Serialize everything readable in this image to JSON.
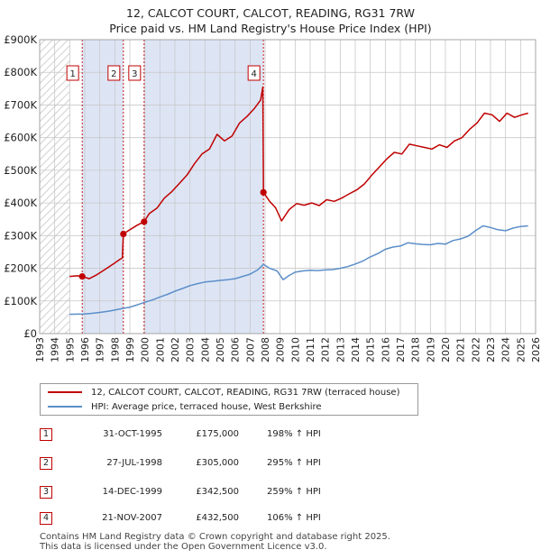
{
  "title": {
    "line1": "12, CALCOT COURT, CALCOT, READING, RG31 7RW",
    "line2": "Price paid vs. HM Land Registry's House Price Index (HPI)"
  },
  "colors": {
    "price": "#c00000",
    "hpi": "#5b8ec9",
    "shade": "#dde5f5",
    "grid": "#c8c8c8",
    "marker_box": "#c00000"
  },
  "chart_data": {
    "type": "line",
    "xlim": [
      1993,
      2026
    ],
    "ylim": [
      0,
      900000
    ],
    "x_ticks": [
      "1993",
      "1994",
      "1995",
      "1996",
      "1997",
      "1998",
      "1999",
      "2000",
      "2001",
      "2002",
      "2003",
      "2004",
      "2005",
      "2006",
      "2007",
      "2008",
      "2009",
      "2010",
      "2011",
      "2012",
      "2013",
      "2014",
      "2015",
      "2016",
      "2017",
      "2018",
      "2019",
      "2020",
      "2021",
      "2022",
      "2023",
      "2024",
      "2025",
      "2026"
    ],
    "y_ticks": [
      {
        "value": 0,
        "label": "£0"
      },
      {
        "value": 100000,
        "label": "£100K"
      },
      {
        "value": 200000,
        "label": "£200K"
      },
      {
        "value": 300000,
        "label": "£300K"
      },
      {
        "value": 400000,
        "label": "£400K"
      },
      {
        "value": 500000,
        "label": "£500K"
      },
      {
        "value": 600000,
        "label": "£600K"
      },
      {
        "value": 700000,
        "label": "£700K"
      },
      {
        "value": 800000,
        "label": "£800K"
      },
      {
        "value": 900000,
        "label": "£900K"
      }
    ],
    "data_range": [
      1995.0,
      2025.5
    ],
    "shaded_periods": [
      [
        1995.83,
        1998.57
      ],
      [
        1999.95,
        2007.89
      ]
    ],
    "series": [
      {
        "name": "12, CALCOT COURT, CALCOT, READING, RG31 7RW (terraced house)",
        "color": "#c00000",
        "x": [
          1995.0,
          1995.5,
          1995.83,
          1996.3,
          1996.8,
          1997.3,
          1997.9,
          1998.3,
          1998.5,
          1998.57,
          1999.0,
          1999.5,
          1999.95,
          2000.3,
          2000.8,
          2001.3,
          2001.8,
          2002.3,
          2002.8,
          2003.3,
          2003.8,
          2004.3,
          2004.8,
          2005.3,
          2005.8,
          2006.3,
          2006.8,
          2007.3,
          2007.7,
          2007.85,
          2007.89,
          2008.3,
          2008.7,
          2009.1,
          2009.6,
          2010.1,
          2010.6,
          2011.1,
          2011.6,
          2012.1,
          2012.6,
          2013.1,
          2013.6,
          2014.1,
          2014.6,
          2015.1,
          2015.6,
          2016.1,
          2016.6,
          2017.1,
          2017.6,
          2018.1,
          2018.6,
          2019.1,
          2019.6,
          2020.1,
          2020.6,
          2021.1,
          2021.6,
          2022.1,
          2022.6,
          2023.1,
          2023.6,
          2024.1,
          2024.6,
          2025.1,
          2025.5
        ],
        "y": [
          175000,
          177000,
          175000,
          168000,
          180000,
          195000,
          213000,
          226000,
          232000,
          305000,
          318000,
          332000,
          342500,
          368000,
          384000,
          415000,
          435000,
          460000,
          485000,
          520000,
          550000,
          565000,
          610000,
          590000,
          605000,
          645000,
          665000,
          690000,
          715000,
          755000,
          432500,
          405000,
          385000,
          345000,
          380000,
          398000,
          393000,
          400000,
          392000,
          410000,
          405000,
          415000,
          428000,
          440000,
          458000,
          485000,
          510000,
          535000,
          555000,
          550000,
          580000,
          575000,
          570000,
          565000,
          578000,
          570000,
          590000,
          600000,
          625000,
          645000,
          675000,
          670000,
          650000,
          675000,
          662000,
          670000,
          675000
        ]
      },
      {
        "name": "HPI: Average price, terraced house, West Berkshire",
        "color": "#5b8ec9",
        "x": [
          1995.0,
          1995.5,
          1996.0,
          1996.5,
          1997.0,
          1997.5,
          1998.0,
          1998.5,
          1999.0,
          1999.5,
          2000.0,
          2000.5,
          2001.0,
          2001.5,
          2002.0,
          2002.5,
          2003.0,
          2003.5,
          2004.0,
          2004.5,
          2005.0,
          2005.5,
          2006.0,
          2006.5,
          2007.0,
          2007.5,
          2007.9,
          2008.3,
          2008.8,
          2009.2,
          2009.6,
          2010.0,
          2010.5,
          2011.0,
          2011.5,
          2012.0,
          2012.5,
          2013.0,
          2013.5,
          2014.0,
          2014.5,
          2015.0,
          2015.5,
          2016.0,
          2016.5,
          2017.0,
          2017.5,
          2018.0,
          2018.5,
          2019.0,
          2019.5,
          2020.0,
          2020.5,
          2021.0,
          2021.5,
          2022.0,
          2022.5,
          2023.0,
          2023.5,
          2024.0,
          2024.5,
          2025.0,
          2025.5
        ],
        "y": [
          59000,
          59500,
          60000,
          62000,
          65000,
          68000,
          72000,
          77000,
          81000,
          88000,
          96000,
          103000,
          112000,
          120000,
          130000,
          138000,
          147000,
          153000,
          158000,
          160000,
          163000,
          165000,
          168000,
          175000,
          182000,
          195000,
          212000,
          200000,
          192000,
          165000,
          178000,
          188000,
          192000,
          194000,
          193000,
          195000,
          196000,
          200000,
          205000,
          213000,
          222000,
          235000,
          245000,
          258000,
          265000,
          268000,
          278000,
          275000,
          273000,
          272000,
          276000,
          274000,
          285000,
          290000,
          298000,
          315000,
          330000,
          325000,
          318000,
          315000,
          323000,
          328000,
          330000
        ]
      }
    ],
    "annotations": [
      {
        "label": "1",
        "x": 1995.83,
        "y": 175000
      },
      {
        "label": "2",
        "x": 1998.57,
        "y": 305000
      },
      {
        "label": "3",
        "x": 1999.95,
        "y": 342500
      },
      {
        "label": "4",
        "x": 2007.89,
        "y": 432500
      }
    ]
  },
  "legend": {
    "price_label": "12, CALCOT COURT, CALCOT, READING, RG31 7RW (terraced house)",
    "hpi_label": "HPI: Average price, terraced house, West Berkshire"
  },
  "transactions": [
    {
      "num": "1",
      "date": "31-OCT-1995",
      "price": "£175,000",
      "hpi": "198% ↑ HPI"
    },
    {
      "num": "2",
      "date": "27-JUL-1998",
      "price": "£305,000",
      "hpi": "295% ↑ HPI"
    },
    {
      "num": "3",
      "date": "14-DEC-1999",
      "price": "£342,500",
      "hpi": "259% ↑ HPI"
    },
    {
      "num": "4",
      "date": "21-NOV-2007",
      "price": "£432,500",
      "hpi": "106% ↑ HPI"
    }
  ],
  "footer": "Contains HM Land Registry data © Crown copyright and database right 2025.\nThis data is licensed under the Open Government Licence v3.0."
}
